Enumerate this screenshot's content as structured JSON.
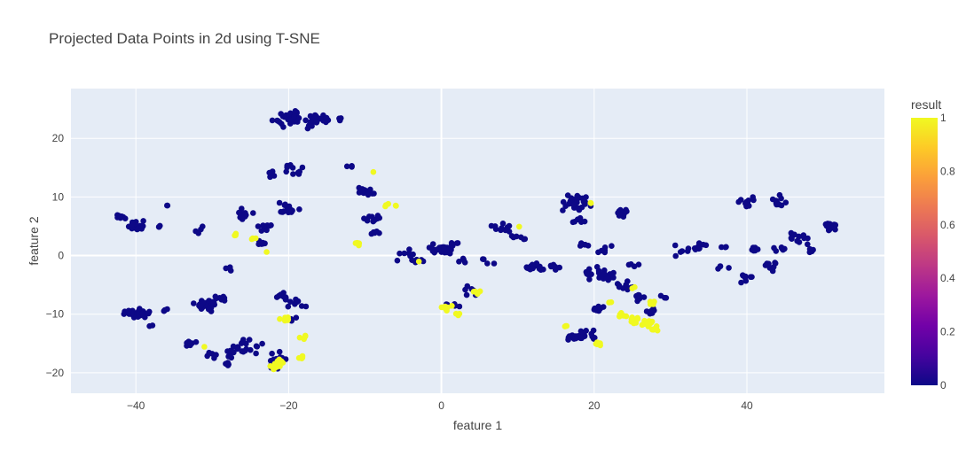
{
  "chart_data": {
    "type": "scatter",
    "title": "Projected Data Points in 2d using T-SNE",
    "xlabel": "feature 1",
    "ylabel": "feature 2",
    "xlim": [
      -48.5,
      58
    ],
    "ylim": [
      -23.5,
      28.5
    ],
    "xticks": [
      -40,
      -20,
      0,
      20,
      40
    ],
    "yticks": [
      -20,
      -10,
      0,
      10,
      20
    ],
    "grid": true,
    "colorbar": {
      "title": "result",
      "range": [
        0,
        1
      ],
      "ticks": [
        0,
        0.2,
        0.4,
        0.6,
        0.8,
        1
      ],
      "colors": [
        "#0d0887",
        "#46039f",
        "#7201a8",
        "#9c179e",
        "#bd3786",
        "#d8576b",
        "#ed7953",
        "#fb9f3a",
        "#fdca26",
        "#f0f921"
      ]
    },
    "clusters_result_0": [
      [
        -40,
        5,
        1.2,
        20
      ],
      [
        -42,
        6.5,
        0.7,
        8
      ],
      [
        -37,
        5,
        0.3,
        3
      ],
      [
        -36,
        8.5,
        0.3,
        2
      ],
      [
        -39.5,
        -9.8,
        1.3,
        28
      ],
      [
        -41,
        -9.5,
        0.6,
        6
      ],
      [
        -36,
        -9,
        0.6,
        4
      ],
      [
        -38,
        -12,
        0.3,
        2
      ],
      [
        -31,
        -8.5,
        1.5,
        30
      ],
      [
        -29,
        -7.5,
        1,
        8
      ],
      [
        -33,
        -15,
        1,
        8
      ],
      [
        -28,
        -2.5,
        1,
        3
      ],
      [
        -30,
        -17,
        1,
        5
      ],
      [
        -26,
        -16,
        2.5,
        26
      ],
      [
        -28,
        -18.5,
        0.8,
        4
      ],
      [
        -31.5,
        4.5,
        1,
        4
      ],
      [
        -26,
        7,
        1.2,
        14
      ],
      [
        -23,
        5,
        1,
        8
      ],
      [
        -23.5,
        2,
        0.8,
        6
      ],
      [
        -20.5,
        8,
        1.8,
        14
      ],
      [
        -19,
        14.5,
        1.5,
        10
      ],
      [
        -22,
        14,
        1,
        4
      ],
      [
        -21,
        -7,
        1,
        10
      ],
      [
        -19.5,
        -11,
        0.6,
        4
      ],
      [
        -21.5,
        -17.5,
        1.5,
        12
      ],
      [
        -19,
        -8,
        1.5,
        10
      ],
      [
        -20,
        23.5,
        2,
        30
      ],
      [
        -16.5,
        23.5,
        1.5,
        22
      ],
      [
        -17.5,
        22,
        1,
        5
      ],
      [
        -13.5,
        23.5,
        0.6,
        4
      ],
      [
        -10,
        11,
        1.3,
        16
      ],
      [
        -9,
        6.5,
        1.2,
        10
      ],
      [
        -8.5,
        4,
        0.6,
        6
      ],
      [
        -12,
        15,
        0.8,
        3
      ],
      [
        -4,
        0,
        2,
        12
      ],
      [
        -1,
        1,
        1.2,
        8
      ],
      [
        0.3,
        1,
        0.9,
        30
      ],
      [
        2,
        2,
        0.6,
        4
      ],
      [
        3,
        -1,
        0.8,
        4
      ],
      [
        4,
        -6,
        1,
        6
      ],
      [
        1.5,
        -8.5,
        0.8,
        6
      ],
      [
        6,
        -1,
        1,
        4
      ],
      [
        8,
        5,
        1.5,
        10
      ],
      [
        10,
        3,
        1,
        6
      ],
      [
        11,
        -2,
        1,
        6
      ],
      [
        12.5,
        -2,
        1.2,
        10
      ],
      [
        15,
        -2,
        1,
        6
      ],
      [
        17.5,
        9,
        2,
        30
      ],
      [
        18,
        6,
        1,
        8
      ],
      [
        24,
        7.5,
        1,
        10
      ],
      [
        19,
        2,
        1,
        6
      ],
      [
        21.5,
        1,
        1,
        6
      ],
      [
        20,
        -3,
        1.5,
        14
      ],
      [
        22,
        -3.5,
        1.2,
        10
      ],
      [
        21,
        -9,
        1,
        8
      ],
      [
        19,
        -13.5,
        1.5,
        18
      ],
      [
        17,
        -14,
        1,
        8
      ],
      [
        24,
        -5,
        1.5,
        10
      ],
      [
        25.5,
        -7,
        1,
        8
      ],
      [
        27.5,
        -9.5,
        1,
        6
      ],
      [
        29.5,
        -7,
        0.6,
        3
      ],
      [
        25,
        -1.5,
        1,
        4
      ],
      [
        32,
        1,
        1.5,
        8
      ],
      [
        34,
        1.5,
        1,
        6
      ],
      [
        36.5,
        -2,
        1,
        4
      ],
      [
        37,
        1.5,
        0.6,
        3
      ],
      [
        40,
        9,
        1.5,
        12
      ],
      [
        44,
        9,
        1.5,
        12
      ],
      [
        46.5,
        3,
        1.5,
        14
      ],
      [
        44.5,
        1,
        1,
        6
      ],
      [
        43,
        -2,
        1.5,
        10
      ],
      [
        40,
        -4,
        1,
        8
      ],
      [
        41,
        1,
        0.6,
        6
      ],
      [
        51,
        5,
        0.9,
        22
      ],
      [
        48.5,
        1,
        0.6,
        4
      ],
      [
        -22,
        -19,
        0.8,
        4
      ]
    ],
    "clusters_result_1": [
      [
        -27,
        3.5,
        0.3,
        3
      ],
      [
        -24.5,
        3,
        0.5,
        3
      ],
      [
        -23,
        0.5,
        0.2,
        1
      ],
      [
        -20,
        -11,
        1,
        6
      ],
      [
        -18,
        -14,
        0.6,
        5
      ],
      [
        -18.5,
        -17.5,
        0.6,
        4
      ],
      [
        -21,
        -18.5,
        1,
        10
      ],
      [
        -22,
        -19,
        0.8,
        6
      ],
      [
        -31,
        -15.5,
        0.2,
        1
      ],
      [
        -11,
        2,
        0.8,
        6
      ],
      [
        -7,
        8.5,
        0.4,
        3
      ],
      [
        -6,
        8.5,
        0.3,
        2
      ],
      [
        -9,
        14.5,
        0.3,
        1
      ],
      [
        -3,
        -1,
        0.3,
        1
      ],
      [
        0.5,
        -9,
        0.8,
        8
      ],
      [
        2,
        -10,
        0.4,
        3
      ],
      [
        4.5,
        -6,
        0.6,
        5
      ],
      [
        19.5,
        9,
        0.3,
        2
      ],
      [
        16.5,
        -12,
        0.5,
        3
      ],
      [
        20.5,
        -15,
        0.6,
        6
      ],
      [
        22,
        -8,
        0.3,
        2
      ],
      [
        23.5,
        -10,
        0.6,
        5
      ],
      [
        25.5,
        -11,
        1,
        10
      ],
      [
        27,
        -11.5,
        1,
        12
      ],
      [
        28,
        -12.5,
        0.6,
        6
      ],
      [
        27.5,
        -8,
        0.6,
        4
      ],
      [
        25,
        -5.5,
        0.3,
        2
      ],
      [
        10,
        5,
        0.3,
        1
      ]
    ]
  }
}
